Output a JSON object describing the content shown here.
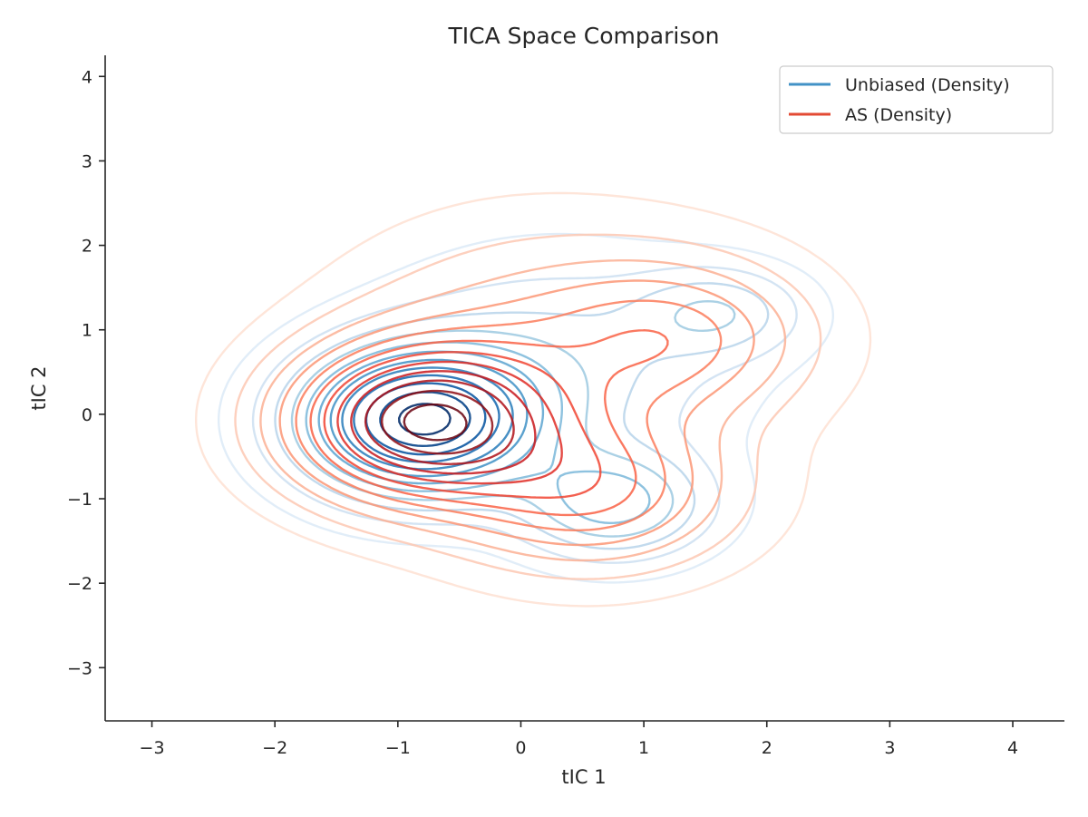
{
  "chart_data": {
    "type": "contour",
    "title": "TICA Space Comparison",
    "xlabel": "tIC 1",
    "ylabel": "tIC 2",
    "xlim": [
      -3.38,
      4.42
    ],
    "ylim": [
      -3.63,
      4.25
    ],
    "xticks": [
      -3,
      -2,
      -1,
      0,
      1,
      2,
      3,
      4
    ],
    "yticks": [
      -3,
      -2,
      -1,
      0,
      1,
      2,
      3,
      4
    ],
    "xtick_labels": [
      "−3",
      "−2",
      "−1",
      "0",
      "1",
      "2",
      "3",
      "4"
    ],
    "ytick_labels": [
      "−3",
      "−2",
      "−1",
      "0",
      "1",
      "2",
      "3",
      "4"
    ],
    "grid": false,
    "legend_position": "top-right",
    "series": [
      {
        "name": "Unbiased (Density)",
        "color": "#4292c6",
        "colormap": "Blues",
        "centers": [
          {
            "x": -0.82,
            "y": -0.08,
            "sx": 0.62,
            "sy": 0.55,
            "w": 1.0
          },
          {
            "x": 0.75,
            "y": -1.05,
            "sx": 0.5,
            "sy": 0.42,
            "w": 0.38
          },
          {
            "x": 1.6,
            "y": 1.2,
            "sx": 0.45,
            "sy": 0.35,
            "w": 0.22
          },
          {
            "x": 0.3,
            "y": 0.6,
            "sx": 0.9,
            "sy": 0.8,
            "w": 0.2
          }
        ]
      },
      {
        "name": "AS (Density)",
        "color": "#e34a33",
        "colormap": "Reds",
        "centers": [
          {
            "x": -0.8,
            "y": -0.1,
            "sx": 0.7,
            "sy": 0.6,
            "w": 1.0
          },
          {
            "x": 0.55,
            "y": -0.9,
            "sx": 0.75,
            "sy": 0.6,
            "w": 0.45
          },
          {
            "x": 1.3,
            "y": 0.9,
            "sx": 0.7,
            "sy": 0.6,
            "w": 0.3
          },
          {
            "x": 0.2,
            "y": 0.8,
            "sx": 1.0,
            "sy": 0.9,
            "w": 0.25
          }
        ]
      }
    ],
    "levels": 12
  }
}
